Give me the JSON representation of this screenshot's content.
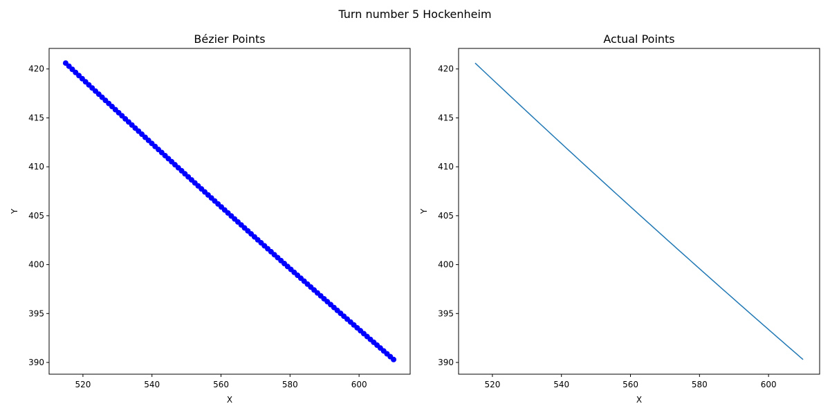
{
  "figure": {
    "suptitle": "Turn number 5 Hockenheim"
  },
  "chart_data": [
    {
      "type": "scatter",
      "title": "Bézier Points",
      "xlabel": "X",
      "ylabel": "Y",
      "xlim": [
        510.2,
        614.8
      ],
      "ylim": [
        388.8,
        422.1
      ],
      "xticks": [
        520,
        540,
        560,
        580,
        600
      ],
      "yticks": [
        390,
        395,
        400,
        405,
        410,
        415,
        420
      ],
      "color": "#0000ff",
      "markers": true,
      "start": [
        515,
        420.6
      ],
      "end": [
        610,
        390.3
      ],
      "n_points": 100,
      "curve_control": [
        562.5,
        404.8
      ],
      "grid": false
    },
    {
      "type": "line",
      "title": "Actual Points",
      "xlabel": "X",
      "ylabel": "Y",
      "xlim": [
        510.2,
        614.8
      ],
      "ylim": [
        388.8,
        422.1
      ],
      "xticks": [
        520,
        540,
        560,
        580,
        600
      ],
      "yticks": [
        390,
        395,
        400,
        405,
        410,
        415,
        420
      ],
      "color": "#1f77b4",
      "markers": false,
      "start": [
        515,
        420.6
      ],
      "end": [
        610,
        390.3
      ],
      "n_points": 100,
      "curve_control": [
        562.5,
        404.8
      ],
      "grid": false
    }
  ]
}
